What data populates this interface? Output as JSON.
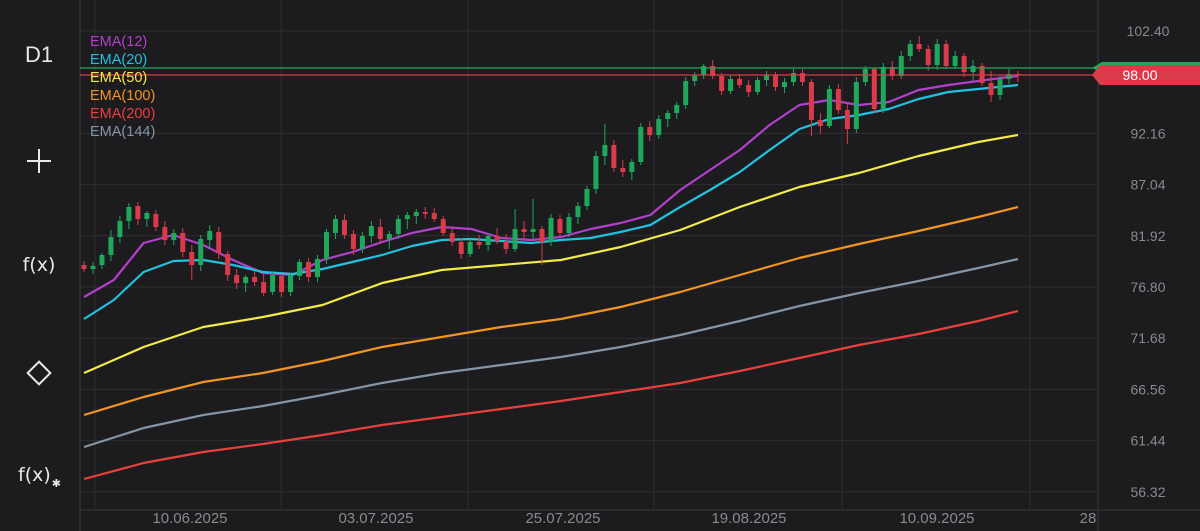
{
  "sidebar": {
    "timeframe": "D1",
    "fx_label": "f(x)",
    "fx_settings_label": "f(x)"
  },
  "legend": [
    {
      "label": "EMA(12)",
      "color": "#b23fce"
    },
    {
      "label": "EMA(20)",
      "color": "#21c2e0"
    },
    {
      "label": "EMA(50)",
      "color": "#f2ea48"
    },
    {
      "label": "EMA(100)",
      "color": "#f39422"
    },
    {
      "label": "EMA(200)",
      "color": "#e8403c"
    },
    {
      "label": "EMA(144)",
      "color": "#8496a6"
    }
  ],
  "current_price_label": "98.00",
  "colors": {
    "up_candle": "#1fa85b",
    "down_candle": "#d93b4a",
    "grid": "#2e2e31",
    "axis_text": "#8a8a8e",
    "price_tag": "#d93b4a",
    "price_tag_green": "#1fa85b"
  },
  "chart_data": {
    "type": "candlestick",
    "timeframe": "D1",
    "ylim": [
      54.5,
      105.5
    ],
    "y_ticks": [
      "102.40",
      "92.16",
      "87.04",
      "81.92",
      "76.80",
      "71.68",
      "66.56",
      "61.44",
      "56.32"
    ],
    "x_labels": [
      "10.06.2025",
      "03.07.2025",
      "25.07.2025",
      "19.08.2025",
      "10.09.2025",
      "28"
    ],
    "current_price": 98.0,
    "green_level": 98.7,
    "candles": [
      [
        79.0,
        79.4,
        78.3,
        78.6
      ],
      [
        78.6,
        79.3,
        78.1,
        78.9
      ],
      [
        79.0,
        80.2,
        78.6,
        80.0
      ],
      [
        80.0,
        82.5,
        79.4,
        81.8
      ],
      [
        81.8,
        83.9,
        81.2,
        83.4
      ],
      [
        83.4,
        85.2,
        82.6,
        84.8
      ],
      [
        84.9,
        85.3,
        83.0,
        83.6
      ],
      [
        83.6,
        84.4,
        82.8,
        84.2
      ],
      [
        84.1,
        84.5,
        82.4,
        82.8
      ],
      [
        82.8,
        83.4,
        81.0,
        81.5
      ],
      [
        81.5,
        82.6,
        81.0,
        82.2
      ],
      [
        82.2,
        82.7,
        79.8,
        80.3
      ],
      [
        80.3,
        81.0,
        77.5,
        79.0
      ],
      [
        79.0,
        82.0,
        78.4,
        81.6
      ],
      [
        81.5,
        83.0,
        80.6,
        82.4
      ],
      [
        82.3,
        82.8,
        79.6,
        80.2
      ],
      [
        80.1,
        80.4,
        77.4,
        78.0
      ],
      [
        78.0,
        78.6,
        76.6,
        77.2
      ],
      [
        77.2,
        78.0,
        76.3,
        77.8
      ],
      [
        77.8,
        78.4,
        76.9,
        77.3
      ],
      [
        77.3,
        78.1,
        75.9,
        76.2
      ],
      [
        76.3,
        78.3,
        76.0,
        78.0
      ],
      [
        77.9,
        78.0,
        75.8,
        76.3
      ],
      [
        76.3,
        78.2,
        75.9,
        78.0
      ],
      [
        77.9,
        79.6,
        77.5,
        79.3
      ],
      [
        79.3,
        79.7,
        77.3,
        77.8
      ],
      [
        77.8,
        80.0,
        77.3,
        79.6
      ],
      [
        79.6,
        82.6,
        79.1,
        82.3
      ],
      [
        82.2,
        84.0,
        81.6,
        83.6
      ],
      [
        83.5,
        84.1,
        81.6,
        82.0
      ],
      [
        82.1,
        82.5,
        80.0,
        80.6
      ],
      [
        80.6,
        82.3,
        80.2,
        81.9
      ],
      [
        81.9,
        83.4,
        81.2,
        82.9
      ],
      [
        82.8,
        83.6,
        81.1,
        81.6
      ],
      [
        81.6,
        82.4,
        80.6,
        82.1
      ],
      [
        82.1,
        84.0,
        81.6,
        83.6
      ],
      [
        83.6,
        84.3,
        82.6,
        84.0
      ],
      [
        83.9,
        84.6,
        83.1,
        84.3
      ],
      [
        84.3,
        84.8,
        83.6,
        84.1
      ],
      [
        84.2,
        84.7,
        83.3,
        83.6
      ],
      [
        83.6,
        83.9,
        81.9,
        82.2
      ],
      [
        82.2,
        82.9,
        80.9,
        81.3
      ],
      [
        81.3,
        81.7,
        79.6,
        80.1
      ],
      [
        80.1,
        81.6,
        79.8,
        81.3
      ],
      [
        81.3,
        82.0,
        80.6,
        81.0
      ],
      [
        81.0,
        82.2,
        80.4,
        81.9
      ],
      [
        81.9,
        82.7,
        81.1,
        81.4
      ],
      [
        81.4,
        82.1,
        80.1,
        80.6
      ],
      [
        80.6,
        84.6,
        80.3,
        82.6
      ],
      [
        82.6,
        83.4,
        81.5,
        82.3
      ],
      [
        82.3,
        85.6,
        81.6,
        82.6
      ],
      [
        82.6,
        82.9,
        79.0,
        81.3
      ],
      [
        81.3,
        84.1,
        80.9,
        83.7
      ],
      [
        83.6,
        84.0,
        81.8,
        82.2
      ],
      [
        82.2,
        84.2,
        81.8,
        83.8
      ],
      [
        83.8,
        85.3,
        83.1,
        84.9
      ],
      [
        84.9,
        86.9,
        84.5,
        86.6
      ],
      [
        86.6,
        90.4,
        86.1,
        89.9
      ],
      [
        89.9,
        93.1,
        89.0,
        91.0
      ],
      [
        91.0,
        91.5,
        88.3,
        88.7
      ],
      [
        88.7,
        89.5,
        87.8,
        88.3
      ],
      [
        88.3,
        89.6,
        87.5,
        89.3
      ],
      [
        89.3,
        93.2,
        89.0,
        92.8
      ],
      [
        92.8,
        93.4,
        91.4,
        92.0
      ],
      [
        92.0,
        94.0,
        91.6,
        93.6
      ],
      [
        93.6,
        94.5,
        92.8,
        94.2
      ],
      [
        94.2,
        95.3,
        93.6,
        95.0
      ],
      [
        95.0,
        97.8,
        94.6,
        97.4
      ],
      [
        97.4,
        98.3,
        96.9,
        98.0
      ],
      [
        98.0,
        99.1,
        97.6,
        98.9
      ],
      [
        98.9,
        99.5,
        97.6,
        97.9
      ],
      [
        97.9,
        98.2,
        96.0,
        96.4
      ],
      [
        96.4,
        98.0,
        96.1,
        97.6
      ],
      [
        97.6,
        98.1,
        96.7,
        97.0
      ],
      [
        97.0,
        97.5,
        95.8,
        96.3
      ],
      [
        96.3,
        97.8,
        96.0,
        97.5
      ],
      [
        97.5,
        98.4,
        96.9,
        98.0
      ],
      [
        98.0,
        98.3,
        96.4,
        96.8
      ],
      [
        96.8,
        97.7,
        96.2,
        97.3
      ],
      [
        97.3,
        98.6,
        96.9,
        98.2
      ],
      [
        98.2,
        98.6,
        96.9,
        97.3
      ],
      [
        97.3,
        97.6,
        91.9,
        93.5
      ],
      [
        93.5,
        94.2,
        92.1,
        92.9
      ],
      [
        92.9,
        97.0,
        92.7,
        96.6
      ],
      [
        96.6,
        97.1,
        94.1,
        94.5
      ],
      [
        94.5,
        95.2,
        91.1,
        92.6
      ],
      [
        92.6,
        97.8,
        92.2,
        97.3
      ],
      [
        97.3,
        98.9,
        96.9,
        98.6
      ],
      [
        98.6,
        98.8,
        94.2,
        94.6
      ],
      [
        94.6,
        99.2,
        94.2,
        98.8
      ],
      [
        98.8,
        99.4,
        97.5,
        97.9
      ],
      [
        97.9,
        100.4,
        97.6,
        99.9
      ],
      [
        99.9,
        101.5,
        99.4,
        101.1
      ],
      [
        101.1,
        101.9,
        100.3,
        100.6
      ],
      [
        100.6,
        101.0,
        98.4,
        99.0
      ],
      [
        99.0,
        101.6,
        98.5,
        101.1
      ],
      [
        101.1,
        101.5,
        98.6,
        98.9
      ],
      [
        98.9,
        100.4,
        98.6,
        99.9
      ],
      [
        99.9,
        100.2,
        97.8,
        98.3
      ],
      [
        98.3,
        99.5,
        97.4,
        98.9
      ],
      [
        98.9,
        99.2,
        96.9,
        97.2
      ],
      [
        97.2,
        98.4,
        95.3,
        96.0
      ],
      [
        96.0,
        97.9,
        95.5,
        97.6
      ],
      [
        97.6,
        98.6,
        97.1,
        98.1
      ],
      [
        98.1,
        98.4,
        97.3,
        98.0
      ]
    ],
    "series": [
      {
        "name": "EMA(12)",
        "color": "#b23fce",
        "points": [
          [
            0,
            75.8
          ],
          [
            6,
            77.5
          ],
          [
            12,
            81.2
          ],
          [
            18,
            82.0
          ],
          [
            24,
            81.0
          ],
          [
            30,
            79.5
          ],
          [
            36,
            78.2
          ],
          [
            42,
            78.0
          ],
          [
            48,
            79.5
          ],
          [
            54,
            80.3
          ],
          [
            60,
            81.3
          ],
          [
            66,
            82.2
          ],
          [
            72,
            82.8
          ],
          [
            78,
            82.6
          ],
          [
            84,
            81.7
          ],
          [
            90,
            81.5
          ],
          [
            96,
            81.8
          ],
          [
            102,
            82.6
          ],
          [
            108,
            83.2
          ],
          [
            114,
            84.0
          ],
          [
            120,
            86.5
          ],
          [
            126,
            88.5
          ],
          [
            132,
            90.5
          ],
          [
            138,
            93.0
          ],
          [
            144,
            95.0
          ],
          [
            150,
            95.5
          ],
          [
            156,
            95.0
          ],
          [
            162,
            95.3
          ],
          [
            168,
            96.5
          ],
          [
            174,
            97.0
          ],
          [
            180,
            97.4
          ],
          [
            186,
            97.8
          ],
          [
            188,
            97.9
          ]
        ]
      },
      {
        "name": "EMA(20)",
        "color": "#21c2e0",
        "points": [
          [
            0,
            73.6
          ],
          [
            6,
            75.5
          ],
          [
            12,
            78.3
          ],
          [
            18,
            79.4
          ],
          [
            24,
            79.5
          ],
          [
            30,
            79.0
          ],
          [
            36,
            78.3
          ],
          [
            42,
            78.1
          ],
          [
            48,
            78.6
          ],
          [
            54,
            79.3
          ],
          [
            60,
            80.0
          ],
          [
            66,
            80.9
          ],
          [
            72,
            81.5
          ],
          [
            78,
            81.6
          ],
          [
            84,
            81.4
          ],
          [
            90,
            81.2
          ],
          [
            96,
            81.5
          ],
          [
            102,
            81.7
          ],
          [
            108,
            82.3
          ],
          [
            114,
            83.0
          ],
          [
            120,
            84.8
          ],
          [
            126,
            86.5
          ],
          [
            132,
            88.3
          ],
          [
            138,
            90.5
          ],
          [
            144,
            92.6
          ],
          [
            150,
            93.6
          ],
          [
            156,
            94.0
          ],
          [
            162,
            94.6
          ],
          [
            168,
            95.6
          ],
          [
            174,
            96.3
          ],
          [
            180,
            96.6
          ],
          [
            186,
            96.9
          ],
          [
            188,
            97.0
          ]
        ]
      },
      {
        "name": "EMA(50)",
        "color": "#f2ea48",
        "points": [
          [
            0,
            68.2
          ],
          [
            12,
            70.8
          ],
          [
            24,
            72.8
          ],
          [
            36,
            73.8
          ],
          [
            48,
            75.0
          ],
          [
            60,
            77.2
          ],
          [
            72,
            78.5
          ],
          [
            84,
            79.0
          ],
          [
            96,
            79.5
          ],
          [
            108,
            80.8
          ],
          [
            120,
            82.5
          ],
          [
            132,
            84.8
          ],
          [
            144,
            86.8
          ],
          [
            156,
            88.2
          ],
          [
            168,
            89.9
          ],
          [
            180,
            91.3
          ],
          [
            188,
            92.0
          ]
        ]
      },
      {
        "name": "EMA(100)",
        "color": "#f39422",
        "points": [
          [
            0,
            64.0
          ],
          [
            12,
            65.8
          ],
          [
            24,
            67.3
          ],
          [
            36,
            68.2
          ],
          [
            48,
            69.4
          ],
          [
            60,
            70.8
          ],
          [
            72,
            71.8
          ],
          [
            84,
            72.8
          ],
          [
            96,
            73.6
          ],
          [
            108,
            74.8
          ],
          [
            120,
            76.3
          ],
          [
            132,
            78.0
          ],
          [
            144,
            79.7
          ],
          [
            156,
            81.1
          ],
          [
            168,
            82.4
          ],
          [
            180,
            83.8
          ],
          [
            188,
            84.8
          ]
        ]
      },
      {
        "name": "EMA(144)",
        "color": "#8496a6",
        "points": [
          [
            0,
            60.8
          ],
          [
            12,
            62.7
          ],
          [
            24,
            64.0
          ],
          [
            36,
            64.9
          ],
          [
            48,
            66.0
          ],
          [
            60,
            67.2
          ],
          [
            72,
            68.2
          ],
          [
            84,
            69.0
          ],
          [
            96,
            69.8
          ],
          [
            108,
            70.8
          ],
          [
            120,
            72.0
          ],
          [
            132,
            73.4
          ],
          [
            144,
            74.9
          ],
          [
            156,
            76.2
          ],
          [
            168,
            77.4
          ],
          [
            180,
            78.7
          ],
          [
            188,
            79.6
          ]
        ]
      },
      {
        "name": "EMA(200)",
        "color": "#e8403c",
        "points": [
          [
            0,
            57.6
          ],
          [
            12,
            59.2
          ],
          [
            24,
            60.3
          ],
          [
            36,
            61.1
          ],
          [
            48,
            62.0
          ],
          [
            60,
            63.0
          ],
          [
            72,
            63.8
          ],
          [
            84,
            64.6
          ],
          [
            96,
            65.4
          ],
          [
            108,
            66.3
          ],
          [
            120,
            67.2
          ],
          [
            132,
            68.4
          ],
          [
            144,
            69.7
          ],
          [
            156,
            71.0
          ],
          [
            168,
            72.1
          ],
          [
            180,
            73.4
          ],
          [
            188,
            74.4
          ]
        ]
      }
    ]
  }
}
